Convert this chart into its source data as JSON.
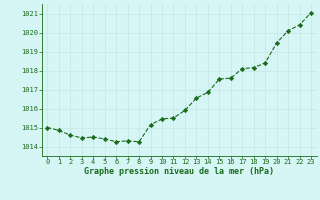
{
  "x": [
    0,
    1,
    2,
    3,
    4,
    5,
    6,
    7,
    8,
    9,
    10,
    11,
    12,
    13,
    14,
    15,
    16,
    17,
    18,
    19,
    20,
    21,
    22,
    23
  ],
  "y": [
    1015.0,
    1014.85,
    1014.6,
    1014.45,
    1014.5,
    1014.4,
    1014.25,
    1014.3,
    1014.25,
    1015.15,
    1015.45,
    1015.5,
    1015.9,
    1016.55,
    1016.85,
    1017.55,
    1017.6,
    1018.1,
    1018.15,
    1018.4,
    1019.45,
    1020.1,
    1020.4,
    1021.05
  ],
  "ylim": [
    1013.5,
    1021.5
  ],
  "yticks": [
    1014,
    1015,
    1016,
    1017,
    1018,
    1019,
    1020,
    1021
  ],
  "xlim": [
    -0.5,
    23.5
  ],
  "xticks": [
    0,
    1,
    2,
    3,
    4,
    5,
    6,
    7,
    8,
    9,
    10,
    11,
    12,
    13,
    14,
    15,
    16,
    17,
    18,
    19,
    20,
    21,
    22,
    23
  ],
  "line_color": "#1a6b1a",
  "marker_color": "#1a6b1a",
  "bg_color": "#d6f5f5",
  "grid_color": "#c8e8e8",
  "xlabel": "Graphe pression niveau de la mer (hPa)",
  "xlabel_color": "#1a6b1a",
  "tick_color": "#1a6b1a",
  "axis_color": "#1a6b1a",
  "figsize": [
    3.2,
    2.0
  ],
  "dpi": 100
}
